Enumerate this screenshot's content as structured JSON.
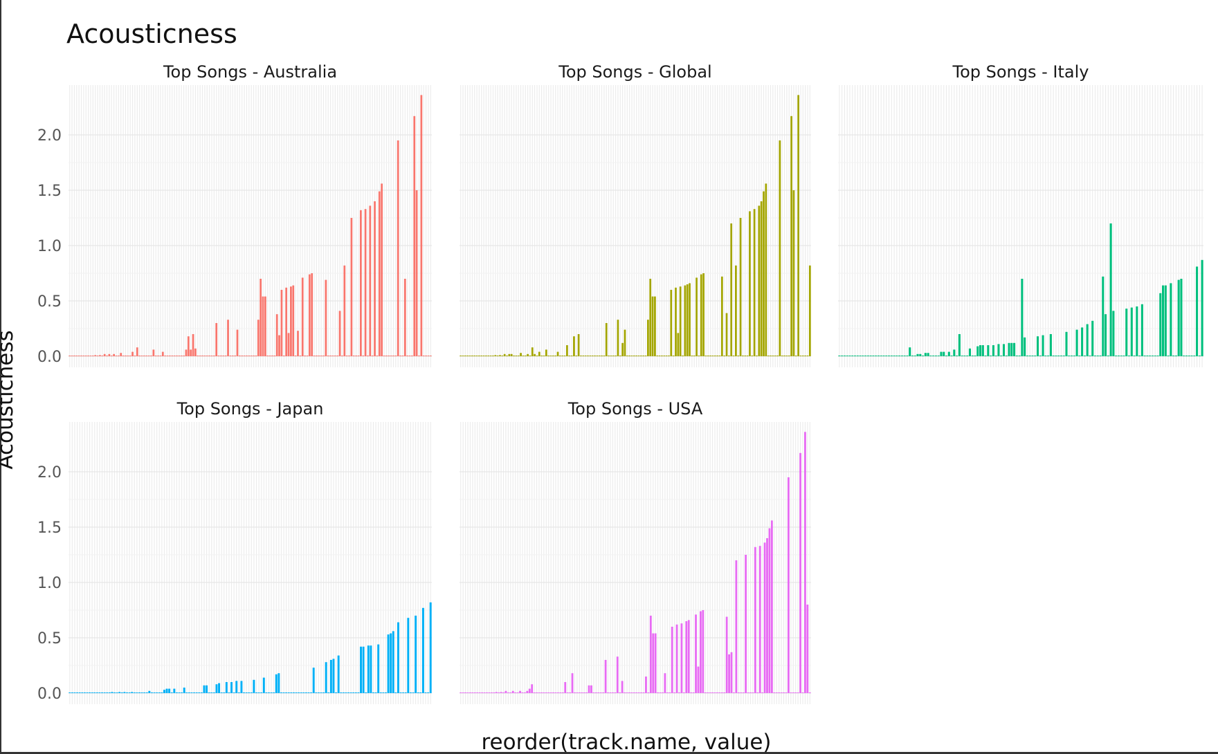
{
  "chart_data": {
    "type": "bar",
    "title": "Acousticness",
    "xlabel": "reorder(track.name, value)",
    "ylabel": "Acousticness",
    "ylim": [
      -0.1,
      2.45
    ],
    "yticks": [
      "0.0",
      "0.5",
      "1.0",
      "1.5",
      "2.0"
    ],
    "grid": true,
    "legend": "none",
    "panels": [
      {
        "name": "Top Songs - Australia",
        "color": "#F8766D",
        "values": [
          0.0,
          0.0,
          0.0,
          0.0,
          0.0,
          0.0,
          0.0,
          0.0,
          0.0,
          0.0,
          0.0,
          0.01,
          0.0,
          0.01,
          0.0,
          0.02,
          0.0,
          0.02,
          0.0,
          0.02,
          0.0,
          0.0,
          0.03,
          0.0,
          0.0,
          0.0,
          0.0,
          0.04,
          0.0,
          0.08,
          0.0,
          0.0,
          0.0,
          0.0,
          0.0,
          0.0,
          0.06,
          0.0,
          0.0,
          0.0,
          0.04,
          0.0,
          0.0,
          0.0,
          0.0,
          0.0,
          0.0,
          0.0,
          0.0,
          0.0,
          0.06,
          0.18,
          0.06,
          0.2,
          0.07,
          0.0,
          0.0,
          0.0,
          0.0,
          0.0,
          0.0,
          0.0,
          0.0,
          0.3,
          0.0,
          0.0,
          0.0,
          0.0,
          0.33,
          0.0,
          0.0,
          0.0,
          0.24,
          0.0,
          0.0,
          0.0,
          0.0,
          0.0,
          0.0,
          0.0,
          0.0,
          0.33,
          0.7,
          0.54,
          0.54,
          0.0,
          0.0,
          0.0,
          0.0,
          0.38,
          0.19,
          0.6,
          0.0,
          0.62,
          0.21,
          0.63,
          0.64,
          0.0,
          0.23,
          0.0,
          0.71,
          0.0,
          0.0,
          0.74,
          0.75,
          0.0,
          0.0,
          0.0,
          0.0,
          0.0,
          0.69,
          0.0,
          0.0,
          0.0,
          0.0,
          0.0,
          0.41,
          0.0,
          0.82,
          0.0,
          0.0,
          1.25,
          0.0,
          0.0,
          0.0,
          1.32,
          0.0,
          1.33,
          0.0,
          1.36,
          0.0,
          1.4,
          0.0,
          1.49,
          1.56,
          0.0,
          0.0,
          0.0,
          0.0,
          0.0,
          0.0,
          1.95,
          0.0,
          0.0,
          0.7,
          0.0,
          0.0,
          0.0,
          2.17,
          1.5,
          0.0,
          2.36,
          0.0,
          0.0,
          0.0,
          0.0
        ]
      },
      {
        "name": "Top Songs - Global",
        "color": "#A3A500",
        "values": [
          0.0,
          0.0,
          0.0,
          0.0,
          0.0,
          0.0,
          0.0,
          0.0,
          0.0,
          0.0,
          0.0,
          0.0,
          0.0,
          0.0,
          0.0,
          0.01,
          0.0,
          0.01,
          0.0,
          0.02,
          0.0,
          0.02,
          0.02,
          0.0,
          0.0,
          0.0,
          0.03,
          0.0,
          0.0,
          0.02,
          0.0,
          0.08,
          0.02,
          0.0,
          0.04,
          0.0,
          0.0,
          0.06,
          0.0,
          0.0,
          0.0,
          0.0,
          0.04,
          0.0,
          0.0,
          0.0,
          0.1,
          0.0,
          0.0,
          0.18,
          0.0,
          0.2,
          0.0,
          0.0,
          0.0,
          0.0,
          0.0,
          0.0,
          0.0,
          0.0,
          0.0,
          0.0,
          0.0,
          0.3,
          0.0,
          0.0,
          0.0,
          0.0,
          0.33,
          0.0,
          0.12,
          0.24,
          0.0,
          0.0,
          0.0,
          0.0,
          0.0,
          0.0,
          0.0,
          0.0,
          0.0,
          0.33,
          0.7,
          0.54,
          0.54,
          0.0,
          0.0,
          0.0,
          0.0,
          0.0,
          0.0,
          0.6,
          0.0,
          0.62,
          0.21,
          0.63,
          0.0,
          0.64,
          0.65,
          0.66,
          0.0,
          0.0,
          0.71,
          0.0,
          0.74,
          0.75,
          0.0,
          0.0,
          0.0,
          0.0,
          0.0,
          0.0,
          0.0,
          0.72,
          0.0,
          0.39,
          0.0,
          1.2,
          0.0,
          0.82,
          0.0,
          1.25,
          0.0,
          0.0,
          0.0,
          1.31,
          0.0,
          1.33,
          0.0,
          1.36,
          1.4,
          1.49,
          1.56,
          0.0,
          0.0,
          0.0,
          0.0,
          0.0,
          1.95,
          0.0,
          0.0,
          0.0,
          0.0,
          2.17,
          1.5,
          0.0,
          2.36,
          0.0,
          0.0,
          0.0,
          0.0,
          0.82
        ]
      },
      {
        "name": "Top Songs - Italy",
        "color": "#00BF7D",
        "values": [
          0.0,
          0.0,
          0.0,
          0.0,
          0.0,
          0.0,
          0.0,
          0.0,
          0.0,
          0.0,
          0.0,
          0.0,
          0.0,
          0.0,
          0.0,
          0.0,
          0.0,
          0.0,
          0.0,
          0.0,
          0.0,
          0.0,
          0.0,
          0.0,
          0.0,
          0.0,
          0.0,
          0.08,
          0.0,
          0.0,
          0.02,
          0.02,
          0.0,
          0.03,
          0.03,
          0.0,
          0.0,
          0.0,
          0.0,
          0.04,
          0.04,
          0.0,
          0.04,
          0.0,
          0.06,
          0.0,
          0.2,
          0.0,
          0.0,
          0.0,
          0.07,
          0.0,
          0.0,
          0.09,
          0.1,
          0.1,
          0.0,
          0.1,
          0.0,
          0.1,
          0.0,
          0.11,
          0.0,
          0.11,
          0.0,
          0.12,
          0.12,
          0.12,
          0.0,
          0.0,
          0.7,
          0.17,
          0.0,
          0.0,
          0.0,
          0.0,
          0.18,
          0.0,
          0.19,
          0.0,
          0.0,
          0.2,
          0.0,
          0.0,
          0.0,
          0.0,
          0.0,
          0.22,
          0.0,
          0.0,
          0.0,
          0.24,
          0.0,
          0.26,
          0.0,
          0.29,
          0.0,
          0.32,
          0.0,
          0.0,
          0.0,
          0.72,
          0.38,
          0.0,
          1.2,
          0.41,
          0.0,
          0.0,
          0.0,
          0.0,
          0.43,
          0.0,
          0.44,
          0.0,
          0.45,
          0.0,
          0.47,
          0.0,
          0.0,
          0.0,
          0.0,
          0.0,
          0.0,
          0.57,
          0.64,
          0.64,
          0.0,
          0.66,
          0.0,
          0.0,
          0.69,
          0.7,
          0.0,
          0.0,
          0.0,
          0.0,
          0.0,
          0.81,
          0.0,
          0.87
        ]
      },
      {
        "name": "Top Songs - Japan",
        "color": "#00B0F6",
        "values": [
          0.0,
          0.0,
          0.0,
          0.0,
          0.0,
          0.0,
          0.0,
          0.0,
          0.0,
          0.0,
          0.0,
          0.0,
          0.0,
          0.0,
          0.0,
          0.0,
          0.0,
          0.01,
          0.0,
          0.0,
          0.01,
          0.0,
          0.01,
          0.0,
          0.0,
          0.01,
          0.0,
          0.0,
          0.0,
          0.0,
          0.0,
          0.0,
          0.02,
          0.0,
          0.0,
          0.0,
          0.0,
          0.0,
          0.03,
          0.04,
          0.04,
          0.0,
          0.04,
          0.0,
          0.0,
          0.0,
          0.05,
          0.0,
          0.0,
          0.0,
          0.0,
          0.0,
          0.0,
          0.0,
          0.07,
          0.07,
          0.0,
          0.0,
          0.0,
          0.08,
          0.09,
          0.0,
          0.0,
          0.1,
          0.0,
          0.1,
          0.0,
          0.11,
          0.0,
          0.11,
          0.0,
          0.0,
          0.0,
          0.0,
          0.12,
          0.0,
          0.0,
          0.0,
          0.14,
          0.0,
          0.0,
          0.0,
          0.0,
          0.17,
          0.18,
          0.0,
          0.0,
          0.0,
          0.0,
          0.0,
          0.0,
          0.0,
          0.0,
          0.0,
          0.0,
          0.0,
          0.0,
          0.0,
          0.23,
          0.0,
          0.0,
          0.0,
          0.0,
          0.28,
          0.0,
          0.3,
          0.31,
          0.0,
          0.34,
          0.0,
          0.0,
          0.0,
          0.0,
          0.0,
          0.0,
          0.0,
          0.0,
          0.42,
          0.42,
          0.0,
          0.43,
          0.43,
          0.0,
          0.0,
          0.44,
          0.0,
          0.0,
          0.0,
          0.53,
          0.54,
          0.56,
          0.0,
          0.64,
          0.0,
          0.0,
          0.0,
          0.68,
          0.0,
          0.0,
          0.7,
          0.0,
          0.0,
          0.77,
          0.0,
          0.0,
          0.82
        ]
      },
      {
        "name": "Top Songs - USA",
        "color": "#E76BF3",
        "values": [
          0.0,
          0.0,
          0.0,
          0.0,
          0.0,
          0.0,
          0.0,
          0.0,
          0.0,
          0.0,
          0.0,
          0.0,
          0.0,
          0.0,
          0.0,
          0.01,
          0.0,
          0.01,
          0.0,
          0.02,
          0.0,
          0.0,
          0.02,
          0.0,
          0.0,
          0.02,
          0.0,
          0.0,
          0.02,
          0.04,
          0.08,
          0.0,
          0.0,
          0.0,
          0.0,
          0.0,
          0.0,
          0.0,
          0.0,
          0.0,
          0.0,
          0.0,
          0.0,
          0.0,
          0.1,
          0.0,
          0.0,
          0.18,
          0.0,
          0.0,
          0.0,
          0.0,
          0.0,
          0.0,
          0.07,
          0.07,
          0.0,
          0.0,
          0.0,
          0.0,
          0.0,
          0.3,
          0.0,
          0.0,
          0.0,
          0.0,
          0.33,
          0.0,
          0.11,
          0.0,
          0.0,
          0.0,
          0.0,
          0.0,
          0.0,
          0.0,
          0.0,
          0.0,
          0.15,
          0.0,
          0.7,
          0.54,
          0.54,
          0.0,
          0.0,
          0.0,
          0.18,
          0.0,
          0.0,
          0.6,
          0.0,
          0.62,
          0.0,
          0.63,
          0.0,
          0.65,
          0.66,
          0.0,
          0.0,
          0.71,
          0.24,
          0.74,
          0.75,
          0.0,
          0.0,
          0.0,
          0.0,
          0.0,
          0.0,
          0.0,
          0.0,
          0.0,
          0.69,
          0.35,
          0.37,
          0.0,
          1.2,
          0.0,
          0.0,
          0.0,
          1.25,
          0.0,
          0.0,
          0.0,
          1.32,
          0.0,
          1.33,
          0.0,
          1.36,
          1.4,
          1.49,
          1.56,
          0.0,
          0.0,
          0.0,
          0.0,
          0.0,
          0.0,
          1.95,
          0.0,
          0.0,
          0.0,
          0.0,
          2.17,
          0.0,
          2.36,
          0.8,
          0.0
        ]
      }
    ]
  }
}
